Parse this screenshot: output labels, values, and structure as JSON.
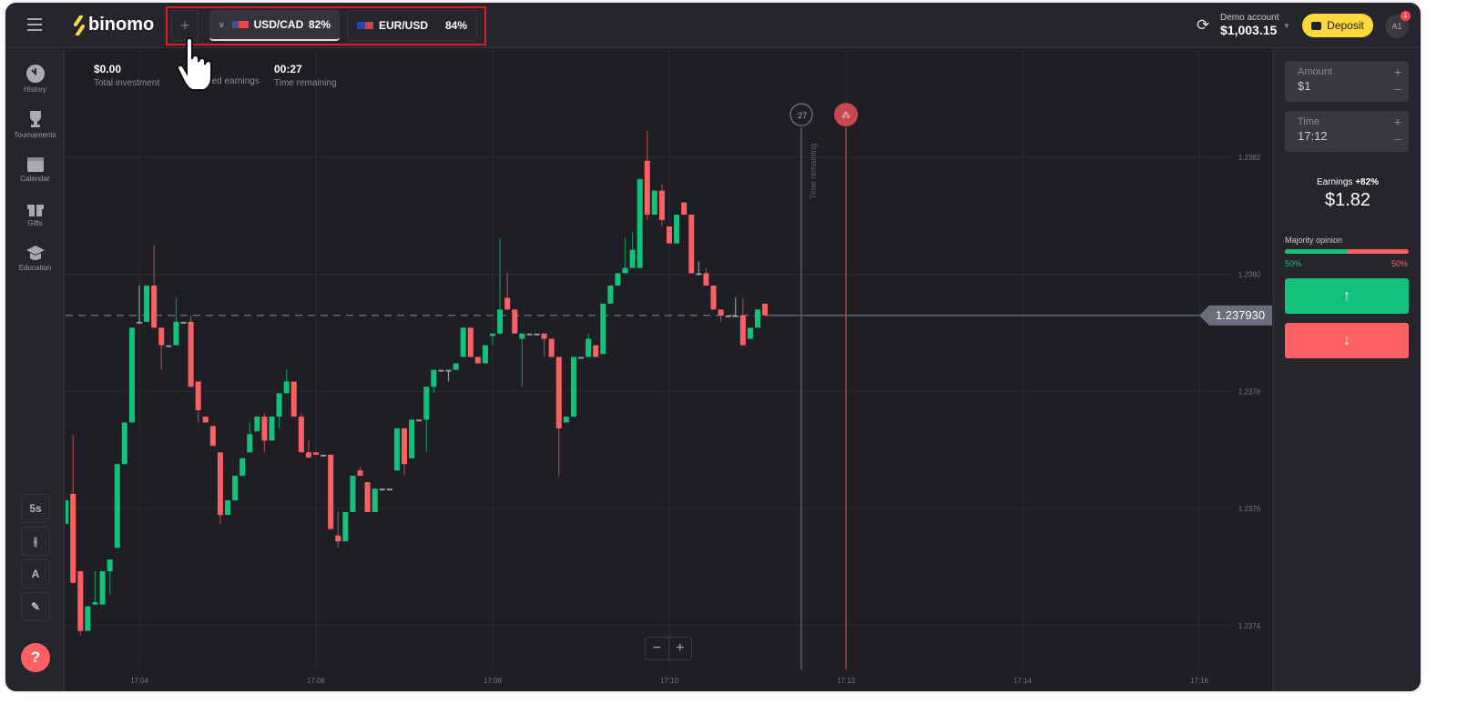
{
  "header": {
    "logo": "binomo",
    "add_tab_label": "+",
    "tabs": [
      {
        "pair": "USD/CAD",
        "percent": "82%",
        "active": true
      },
      {
        "pair": "EUR/USD",
        "percent": "84%",
        "active": false
      }
    ],
    "account_type": "Demo account",
    "balance": "$1,003.15",
    "deposit_label": "Deposit",
    "avatar_initials": "A1",
    "notification_count": "1"
  },
  "sidebar": {
    "items": [
      {
        "label": "History",
        "icon": "clock-icon"
      },
      {
        "label": "Tournaments",
        "icon": "trophy-icon"
      },
      {
        "label": "Calendar",
        "icon": "calendar-icon"
      },
      {
        "label": "Gifts",
        "icon": "gift-icon"
      },
      {
        "label": "Education",
        "icon": "graduation-cap-icon"
      }
    ]
  },
  "stats": {
    "investment_value": "$0.00",
    "investment_label": "Total investment",
    "earnings_label": "Expected earnings",
    "time_value": "00:27",
    "time_label": "Time remaining"
  },
  "tools": {
    "interval": "5s",
    "help": "?"
  },
  "chart_markers": {
    "countdown": ":27",
    "time_remaining_label": "Time remaining",
    "current_price": "1.237930"
  },
  "zoom": {
    "minus": "−",
    "plus": "+"
  },
  "right_panel": {
    "amount_label": "Amount",
    "amount_value": "$1",
    "time_label": "Time",
    "time_value": "17:12",
    "earnings_label": "Earnings",
    "earnings_percent": "+82%",
    "earnings_value": "$1.82",
    "majority_label": "Majority opinion",
    "majority_up": "50%",
    "majority_down": "50%",
    "majority_up_fraction": 0.5,
    "up_color": "#13c27a",
    "down_color": "#ff6064"
  },
  "chart_data": {
    "type": "candlestick",
    "symbol": "USD/CAD",
    "interval_seconds": 5,
    "first_candle_time": "17:03:10",
    "y_ticks": [
      "1.2374",
      "1.2376",
      "1.2378",
      "1.2380",
      "1.2382"
    ],
    "x_ticks": [
      "17:04",
      "17:06",
      "17:08",
      "17:10",
      "17:12",
      "17:14",
      "17:16"
    ],
    "ylim": [
      1.23729,
      1.23838
    ],
    "grid": true,
    "current_price": 1.23793,
    "expiry_time": "17:12",
    "candles_ohlc": [
      [
        1.237574,
        1.237614,
        1.237574,
        1.237614
      ],
      [
        1.237625,
        1.237726,
        1.237473,
        1.237473
      ],
      [
        1.237493,
        1.237493,
        1.237383,
        1.237391
      ],
      [
        1.237391,
        1.237433,
        1.237391,
        1.237433
      ],
      [
        1.237436,
        1.237493,
        1.237436,
        1.23744
      ],
      [
        1.237436,
        1.237493,
        1.237436,
        1.237493
      ],
      [
        1.237493,
        1.237513,
        1.237453,
        1.237513
      ],
      [
        1.237533,
        1.237676,
        1.237533,
        1.237676
      ],
      [
        1.237676,
        1.237747,
        1.237676,
        1.237747
      ],
      [
        1.237747,
        1.237909,
        1.237747,
        1.237909
      ],
      [
        1.237919,
        1.237981,
        1.237919,
        1.237919
      ],
      [
        1.237919,
        1.237981,
        1.237919,
        1.237981
      ],
      [
        1.237981,
        1.238051,
        1.237909,
        1.237909
      ],
      [
        1.237909,
        1.237909,
        1.237837,
        1.237879
      ],
      [
        1.237879,
        1.237879,
        1.237879,
        1.237879
      ],
      [
        1.237879,
        1.23796,
        1.237879,
        1.237919
      ],
      [
        1.237919,
        1.237919,
        1.237919,
        1.237919
      ],
      [
        1.237919,
        1.23793,
        1.237808,
        1.237808
      ],
      [
        1.237817,
        1.237817,
        1.237747,
        1.237768
      ],
      [
        1.237757,
        1.237757,
        1.237747,
        1.237747
      ],
      [
        1.237741,
        1.237741,
        1.237707,
        1.237707
      ],
      [
        1.237696,
        1.237696,
        1.237574,
        1.237589
      ],
      [
        1.237589,
        1.237614,
        1.237589,
        1.237614
      ],
      [
        1.237614,
        1.237656,
        1.237614,
        1.237656
      ],
      [
        1.237656,
        1.237686,
        1.237656,
        1.237686
      ],
      [
        1.237696,
        1.237747,
        1.237696,
        1.237727
      ],
      [
        1.237732,
        1.237757,
        1.237732,
        1.237757
      ],
      [
        1.237757,
        1.237763,
        1.237696,
        1.237716
      ],
      [
        1.237716,
        1.237757,
        1.237716,
        1.237757
      ],
      [
        1.237757,
        1.237797,
        1.237737,
        1.237797
      ],
      [
        1.237797,
        1.237837,
        1.237797,
        1.237817
      ],
      [
        1.237817,
        1.237817,
        1.237757,
        1.237757
      ],
      [
        1.237757,
        1.237763,
        1.237696,
        1.237696
      ],
      [
        1.237696,
        1.237716,
        1.237687,
        1.237687
      ],
      [
        1.237696,
        1.237696,
        1.237692,
        1.237692
      ],
      [
        1.237692,
        1.237692,
        1.237692,
        1.237692
      ],
      [
        1.237692,
        1.237692,
        1.237565,
        1.237565
      ],
      [
        1.237554,
        1.237594,
        1.237533,
        1.237544
      ],
      [
        1.237544,
        1.237594,
        1.237544,
        1.237594
      ],
      [
        1.237594,
        1.237656,
        1.237594,
        1.237656
      ],
      [
        1.237665,
        1.237671,
        1.237656,
        1.237656
      ],
      [
        1.237645,
        1.237645,
        1.237594,
        1.237594
      ],
      [
        1.237594,
        1.237634,
        1.237594,
        1.237634
      ],
      [
        1.237634,
        1.237634,
        1.237634,
        1.237634
      ],
      [
        1.237634,
        1.237634,
        1.237634,
        1.237634
      ],
      [
        1.237665,
        1.237737,
        1.237665,
        1.237737
      ],
      [
        1.237737,
        1.237737,
        1.237656,
        1.237676
      ],
      [
        1.237686,
        1.237752,
        1.237686,
        1.237752
      ],
      [
        1.237752,
        1.237752,
        1.237752,
        1.237752
      ],
      [
        1.237752,
        1.237808,
        1.237696,
        1.237808
      ],
      [
        1.237808,
        1.237837,
        1.237797,
        1.237837
      ],
      [
        1.237837,
        1.237837,
        1.237837,
        1.237837
      ],
      [
        1.237837,
        1.237837,
        1.237817,
        1.237837
      ],
      [
        1.237837,
        1.237848,
        1.237837,
        1.237848
      ],
      [
        1.237859,
        1.237909,
        1.237859,
        1.237909
      ],
      [
        1.237909,
        1.237909,
        1.237859,
        1.237859
      ],
      [
        1.237859,
        1.237859,
        1.237848,
        1.237848
      ],
      [
        1.237848,
        1.237879,
        1.237848,
        1.237879
      ],
      [
        1.237895,
        1.237899,
        1.237879,
        1.237899
      ],
      [
        1.237899,
        1.238062,
        1.237899,
        1.23794
      ],
      [
        1.23796,
        1.238002,
        1.23794,
        1.23794
      ],
      [
        1.23794,
        1.23794,
        1.237899,
        1.237899
      ],
      [
        1.23789,
        1.237899,
        1.237808,
        1.237899
      ],
      [
        1.237899,
        1.237899,
        1.237899,
        1.237899
      ],
      [
        1.237899,
        1.237899,
        1.237899,
        1.237899
      ],
      [
        1.237899,
        1.237899,
        1.237859,
        1.23789
      ],
      [
        1.23789,
        1.23789,
        1.237859,
        1.237859
      ],
      [
        1.237859,
        1.237859,
        1.237656,
        1.237737
      ],
      [
        1.237747,
        1.237757,
        1.237747,
        1.237757
      ],
      [
        1.237757,
        1.237859,
        1.237757,
        1.237859
      ],
      [
        1.237859,
        1.237859,
        1.237859,
        1.237859
      ],
      [
        1.237859,
        1.237899,
        1.237859,
        1.23789
      ],
      [
        1.237879,
        1.237879,
        1.237859,
        1.237859
      ],
      [
        1.237864,
        1.23795,
        1.237864,
        1.23795
      ],
      [
        1.23795,
        1.237981,
        1.23795,
        1.237981
      ],
      [
        1.237981,
        1.238002,
        1.237981,
        1.238002
      ],
      [
        1.238002,
        1.238062,
        1.238002,
        1.238011
      ],
      [
        1.238011,
        1.238073,
        1.238011,
        1.238042
      ],
      [
        1.238011,
        1.238163,
        1.238011,
        1.238163
      ],
      [
        1.238194,
        1.238245,
        1.238093,
        1.238102
      ],
      [
        1.238102,
        1.238143,
        1.238102,
        1.238143
      ],
      [
        1.238143,
        1.238154,
        1.238082,
        1.238093
      ],
      [
        1.238082,
        1.238082,
        1.238053,
        1.238053
      ],
      [
        1.238053,
        1.238102,
        1.238053,
        1.238102
      ],
      [
        1.238123,
        1.238123,
        1.238102,
        1.238102
      ],
      [
        1.238102,
        1.238102,
        1.238002,
        1.238002
      ],
      [
        1.238002,
        1.238022,
        1.238002,
        1.238002
      ],
      [
        1.238002,
        1.238011,
        1.237981,
        1.237981
      ],
      [
        1.237981,
        1.237981,
        1.23794,
        1.23794
      ],
      [
        1.23794,
        1.23794,
        1.237919,
        1.23793
      ],
      [
        1.23793,
        1.23793,
        1.23793,
        1.23793
      ],
      [
        1.23793,
        1.23796,
        1.23793,
        1.23793
      ],
      [
        1.23793,
        1.23796,
        1.237879,
        1.237879
      ],
      [
        1.23789,
        1.237909,
        1.23789,
        1.237909
      ],
      [
        1.237909,
        1.23794,
        1.237909,
        1.23794
      ],
      [
        1.23795,
        1.23795,
        1.23793,
        1.23793
      ]
    ]
  }
}
